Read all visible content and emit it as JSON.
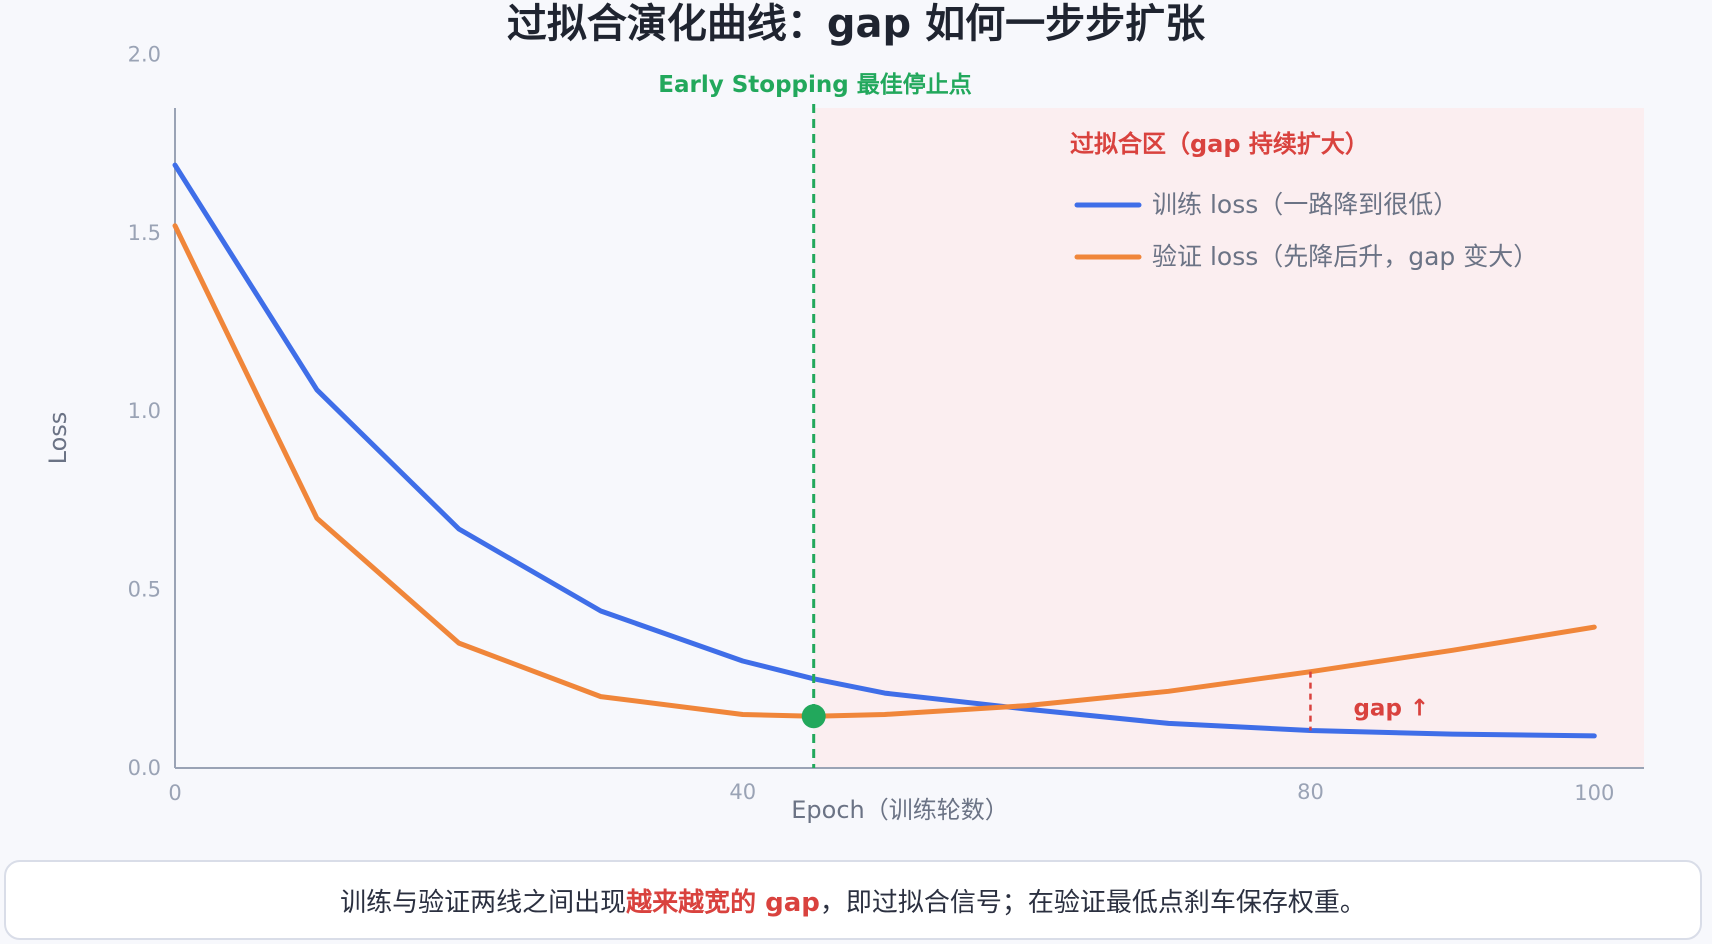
{
  "colors": {
    "train": "#3f6ee8",
    "val": "#f0863a",
    "early_stop": "#22a85c",
    "overfit": "#d9423e",
    "overfit_fill": "#fbeef0",
    "axis": "#9aa3b5",
    "tick_text": "#9aa3b5",
    "label_text": "#6b7385"
  },
  "caption": {
    "before": "训练与验证两线之间出现",
    "highlight": "越来越宽的 gap",
    "after": "，即过拟合信号；在验证最低点刹车保存权重。"
  },
  "chart_data": {
    "type": "line",
    "title": "过拟合演化曲线：gap 如何一步步扩张",
    "xlabel": "Epoch（训练轮数）",
    "ylabel": "Loss",
    "xlim": [
      0,
      103.5
    ],
    "ylim": [
      0,
      1.85
    ],
    "x_ticks": [
      0,
      40,
      80,
      100
    ],
    "y_ticks": [
      0.0,
      0.5,
      1.0,
      1.5,
      2.0
    ],
    "y_tick_labels": [
      "0.0",
      "0.5",
      "1.0",
      "1.5",
      "2.0"
    ],
    "grid": false,
    "legend_position": "top-right",
    "series": [
      {
        "name": "训练 loss（一路降到很低）",
        "x": [
          0,
          10,
          20,
          30,
          40,
          45,
          50,
          60,
          70,
          80,
          90,
          100
        ],
        "y": [
          1.69,
          1.06,
          0.67,
          0.44,
          0.3,
          0.25,
          0.21,
          0.165,
          0.125,
          0.105,
          0.095,
          0.09
        ]
      },
      {
        "name": "验证 loss（先降后升，gap 变大）",
        "x": [
          0,
          10,
          20,
          30,
          40,
          45,
          50,
          60,
          70,
          80,
          90,
          100
        ],
        "y": [
          1.52,
          0.7,
          0.35,
          0.2,
          0.15,
          0.145,
          0.15,
          0.175,
          0.215,
          0.27,
          0.33,
          0.395
        ]
      }
    ],
    "early_stopping": {
      "x": 45,
      "y": 0.145,
      "label": "Early Stopping 最佳停止点"
    },
    "overfit_region": {
      "x_start": 45,
      "label": "过拟合区（gap 持续扩大）"
    },
    "gap_annotation": {
      "x": 80,
      "y_low": 0.105,
      "y_high": 0.27,
      "label": "gap ↑"
    }
  }
}
